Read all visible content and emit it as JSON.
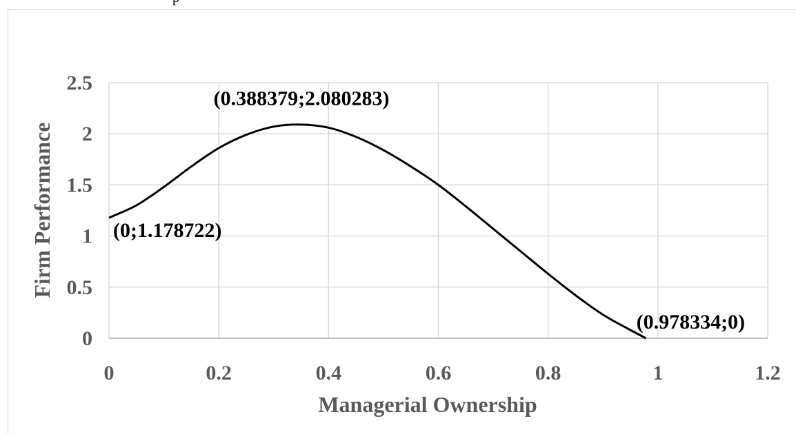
{
  "chart_data": {
    "type": "line",
    "title": "",
    "xlabel": "Managerial Ownership",
    "ylabel": "Firm Performance",
    "xlim": [
      0,
      1.2
    ],
    "ylim": [
      0,
      2.5
    ],
    "x_ticks": [
      "0",
      "0.2",
      "0.4",
      "0.6",
      "0.8",
      "1",
      "1.2"
    ],
    "y_ticks": [
      "0",
      "0.5",
      "1",
      "1.5",
      "2",
      "2.5"
    ],
    "grid": true,
    "legend": "none",
    "line_color": "#000000",
    "grid_color": "#d9d9d9",
    "axis_label_color": "#595959",
    "series": [
      {
        "x": [
          0,
          0.05,
          0.1,
          0.15,
          0.2,
          0.25,
          0.3,
          0.35,
          0.4,
          0.45,
          0.5,
          0.55,
          0.6,
          0.65,
          0.7,
          0.75,
          0.8,
          0.85,
          0.9,
          0.95,
          0.978334
        ],
        "values": [
          1.178722,
          1.3,
          1.48,
          1.68,
          1.86,
          1.99,
          2.07,
          2.09,
          2.06,
          1.97,
          1.84,
          1.68,
          1.5,
          1.29,
          1.07,
          0.85,
          0.63,
          0.42,
          0.23,
          0.08,
          0
        ]
      }
    ],
    "annotations": [
      {
        "text": "(0;1.178722)",
        "x": 0,
        "y": 1.178722,
        "anchor": "below-right"
      },
      {
        "text": "(0.388379;2.080283)",
        "x": 0.388379,
        "y": 2.080283,
        "anchor": "above"
      },
      {
        "text": "(0.978334;0)",
        "x": 0.978334,
        "y": 0,
        "anchor": "above-right"
      }
    ]
  }
}
